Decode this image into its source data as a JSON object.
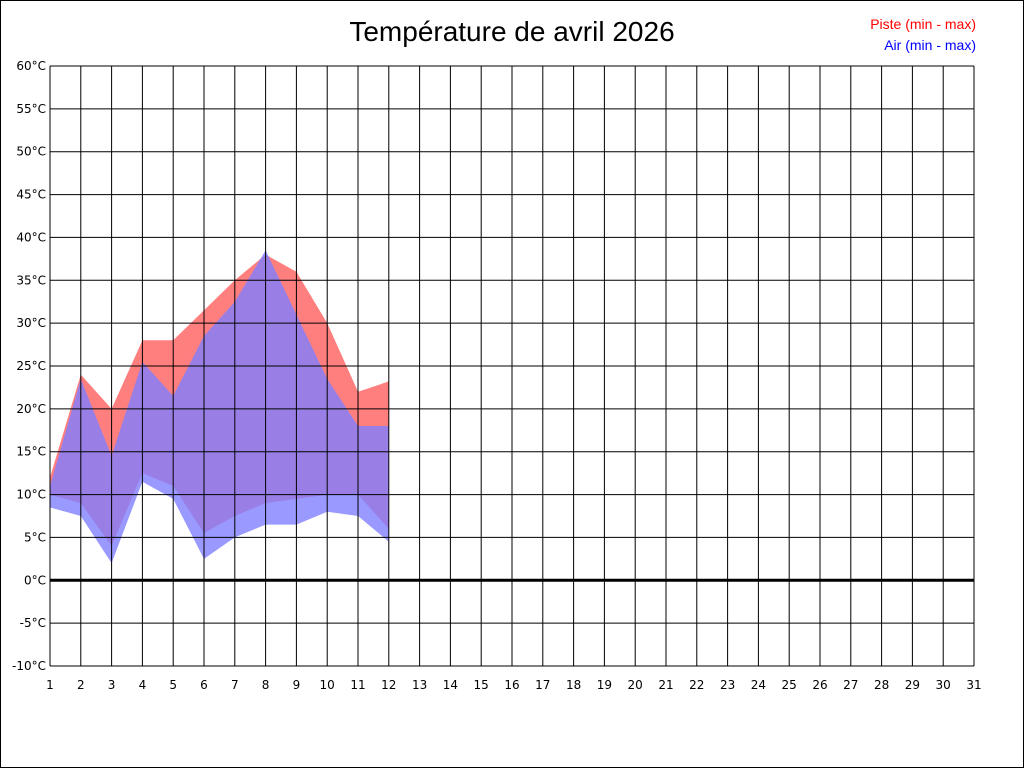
{
  "chart_data": {
    "type": "area",
    "title": "Température de avril 2026",
    "xlabel": "",
    "ylabel": "",
    "x": [
      1,
      2,
      3,
      4,
      5,
      6,
      7,
      8,
      9,
      10,
      11,
      12,
      13,
      14,
      15,
      16,
      17,
      18,
      19,
      20,
      21,
      22,
      23,
      24,
      25,
      26,
      27,
      28,
      29,
      30,
      31
    ],
    "xlim": [
      1,
      31
    ],
    "ylim": [
      -10,
      60
    ],
    "y_step": 5,
    "y_unit": "°C",
    "grid": true,
    "legend_position": "top-right",
    "series": [
      {
        "name": "Piste (min - max)",
        "color": "#ff0000",
        "fill": "#ff7f7f",
        "days": [
          1,
          2,
          3,
          4,
          5,
          6,
          7,
          8,
          9,
          10,
          11,
          12
        ],
        "min": [
          10,
          9,
          4,
          12.5,
          11,
          5.5,
          7.5,
          9,
          9.5,
          10,
          10,
          6
        ],
        "max": [
          12,
          24,
          20,
          28,
          28,
          31.5,
          35,
          38,
          36,
          30,
          22,
          23.2
        ]
      },
      {
        "name": "Air (min - max)",
        "color": "#0000ff",
        "fill": "#7f7fff",
        "days": [
          1,
          2,
          3,
          4,
          5,
          6,
          7,
          8,
          9,
          10,
          11,
          12
        ],
        "min": [
          8.5,
          7.5,
          2,
          11.5,
          9.5,
          2.5,
          5,
          6.5,
          6.5,
          8,
          7.5,
          4.5
        ],
        "max": [
          11,
          23.5,
          14.5,
          25.5,
          21.5,
          28.5,
          32.5,
          38.5,
          31,
          23.5,
          18,
          18
        ]
      }
    ]
  }
}
